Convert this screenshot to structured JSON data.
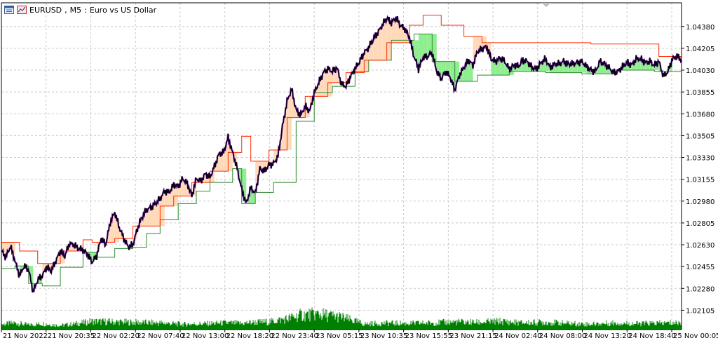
{
  "header": {
    "symbol": "EURUSD",
    "timeframe": "M5",
    "description": "Euro vs US Dollar",
    "icons": [
      "chart-window-icon",
      "chart-type-icon"
    ]
  },
  "colors": {
    "background": "#ffffff",
    "grid": "#c8c8c8",
    "price_line": "#000000",
    "bull_band_fill": "#90ee90",
    "bull_band_edge": "#2e8b2e",
    "bear_band_fill": "#ffdab9",
    "bear_band_edge": "#ff2a00",
    "highlight": "#4b0082",
    "volume": "#008000"
  },
  "chart_data": {
    "type": "line",
    "title": "EURUSD, M5: Euro vs US Dollar",
    "xlabel": "",
    "ylabel": "",
    "ylim": [
      1.0195,
      1.0457
    ],
    "grid": true,
    "y_ticks": [
      "1.04380",
      "1.04205",
      "1.04030",
      "1.03855",
      "1.03680",
      "1.03505",
      "1.03330",
      "1.03155",
      "1.02980",
      "1.02805",
      "1.02630",
      "1.02455",
      "1.02280",
      "1.02105"
    ],
    "x_ticks": [
      "21 Nov 2022",
      "21 Nov 20:35",
      "22 Nov 02:20",
      "22 Nov 07:40",
      "22 Nov 13:00",
      "22 Nov 18:20",
      "22 Nov 23:40",
      "23 Nov 05:15",
      "23 Nov 10:35",
      "23 Nov 15:55",
      "23 Nov 21:15",
      "24 Nov 02:40",
      "24 Nov 08:00",
      "24 Nov 13:20",
      "24 Nov 18:40",
      "25 Nov 00:05"
    ],
    "series": [
      {
        "role": "price",
        "x": [
          0,
          2,
          4,
          6,
          8,
          10,
          12,
          14,
          16,
          18,
          20,
          22,
          24,
          26,
          28,
          30,
          32,
          34,
          36,
          38,
          40,
          42,
          44,
          46,
          48,
          50,
          52,
          54,
          56,
          58,
          60,
          62,
          64,
          66,
          68,
          70,
          72,
          74,
          76,
          78,
          80,
          82,
          84,
          86,
          88,
          90,
          92,
          94,
          96,
          98,
          100,
          102,
          104,
          106,
          108,
          110,
          112,
          114,
          116,
          118,
          120,
          122,
          124,
          126,
          128,
          130,
          132,
          134,
          136,
          138,
          140,
          142,
          144,
          146,
          148,
          150,
          152,
          154,
          156,
          158,
          160,
          162,
          164,
          166,
          168,
          170,
          172,
          174,
          176,
          178,
          180,
          182,
          184,
          186,
          188,
          190,
          192,
          194,
          196,
          198,
          200,
          202,
          204,
          206,
          208,
          210,
          212,
          214,
          216,
          218,
          220,
          222,
          224,
          226,
          228,
          230,
          232,
          234,
          236,
          238,
          240,
          242,
          244,
          246,
          248,
          250,
          252,
          254,
          256,
          258,
          260,
          262,
          264,
          266,
          268,
          270,
          272,
          274,
          276,
          278,
          280,
          282,
          284,
          286,
          288,
          290,
          292,
          294,
          296,
          298,
          300
        ],
        "values": [
          1.0258,
          1.0253,
          1.0262,
          1.025,
          1.0238,
          1.0246,
          1.0243,
          1.0225,
          1.0235,
          1.0238,
          1.0245,
          1.0242,
          1.025,
          1.0258,
          1.0254,
          1.0264,
          1.0263,
          1.026,
          1.0259,
          1.0255,
          1.0249,
          1.0254,
          1.0268,
          1.0263,
          1.0281,
          1.0289,
          1.0277,
          1.0268,
          1.0261,
          1.0263,
          1.0276,
          1.0285,
          1.0291,
          1.0293,
          1.0296,
          1.03,
          1.0306,
          1.0305,
          1.0311,
          1.031,
          1.0316,
          1.0312,
          1.0302,
          1.0316,
          1.0314,
          1.032,
          1.0317,
          1.0326,
          1.0336,
          1.0337,
          1.0349,
          1.0337,
          1.0324,
          1.0307,
          1.0296,
          1.0309,
          1.0304,
          1.0324,
          1.0322,
          1.0327,
          1.0328,
          1.0334,
          1.0358,
          1.0378,
          1.0388,
          1.0371,
          1.0367,
          1.0374,
          1.037,
          1.0385,
          1.0393,
          1.0401,
          1.0404,
          1.0402,
          1.0405,
          1.0392,
          1.039,
          1.0398,
          1.0404,
          1.041,
          1.0417,
          1.0421,
          1.0428,
          1.0433,
          1.0439,
          1.0445,
          1.0441,
          1.0445,
          1.0439,
          1.0436,
          1.0429,
          1.0414,
          1.0404,
          1.0413,
          1.0414,
          1.0417,
          1.0402,
          1.0396,
          1.0402,
          1.0397,
          1.0387,
          1.0399,
          1.0405,
          1.0411,
          1.0407,
          1.0418,
          1.042,
          1.0422,
          1.0412,
          1.041,
          1.0413,
          1.041,
          1.0404,
          1.0407,
          1.0406,
          1.0411,
          1.041,
          1.0405,
          1.0404,
          1.0409,
          1.0412,
          1.0405,
          1.0408,
          1.0408,
          1.041,
          1.0408,
          1.0408,
          1.0409,
          1.041,
          1.0406,
          1.0403,
          1.0402,
          1.041,
          1.0408,
          1.0405,
          1.0401,
          1.0402,
          1.0406,
          1.0409,
          1.0407,
          1.0412,
          1.0412,
          1.0409,
          1.041,
          1.0407,
          1.041,
          1.0398,
          1.0402,
          1.0412,
          1.0414,
          1.0411
        ]
      },
      {
        "role": "band-lower",
        "x": [
          0,
          6,
          12,
          18,
          26,
          36,
          42,
          50,
          58,
          64,
          70,
          78,
          86,
          92,
          102,
          106,
          112,
          120,
          130,
          138,
          146,
          156,
          162,
          172,
          182,
          190,
          200,
          210,
          224,
          240,
          256,
          270,
          288,
          300
        ],
        "values": [
          1.0244,
          1.0246,
          1.0232,
          1.023,
          1.0245,
          1.0257,
          1.0253,
          1.026,
          1.0261,
          1.0272,
          1.0283,
          1.0296,
          1.0306,
          1.0313,
          1.0324,
          1.0296,
          1.0305,
          1.0313,
          1.0362,
          1.0385,
          1.039,
          1.0402,
          1.0411,
          1.0427,
          1.0432,
          1.041,
          1.0394,
          1.0399,
          1.0402,
          1.0401,
          1.04,
          1.0403,
          1.0402,
          1.0407
        ]
      },
      {
        "role": "band-upper",
        "x": [
          0,
          4,
          8,
          16,
          26,
          36,
          40,
          50,
          58,
          64,
          70,
          76,
          84,
          92,
          100,
          106,
          110,
          118,
          126,
          134,
          144,
          152,
          160,
          170,
          180,
          186,
          194,
          204,
          212,
          230,
          260,
          284,
          290,
          300
        ],
        "values": [
          1.0265,
          1.0265,
          1.0258,
          1.0248,
          1.0258,
          1.0267,
          1.0265,
          1.0268,
          1.0278,
          1.0278,
          1.0294,
          1.0302,
          1.0313,
          1.0322,
          1.0337,
          1.035,
          1.033,
          1.0339,
          1.0365,
          1.0382,
          1.0393,
          1.0401,
          1.0411,
          1.0425,
          1.0439,
          1.0447,
          1.0439,
          1.043,
          1.0425,
          1.0425,
          1.0424,
          1.0424,
          1.0414,
          1.0414
        ]
      },
      {
        "role": "volume",
        "x": [
          0,
          6,
          12,
          18,
          26,
          34,
          40,
          50,
          60,
          70,
          80,
          90,
          100,
          106,
          110,
          118,
          126,
          132,
          140,
          150,
          160,
          170,
          180,
          190,
          200,
          210,
          220,
          230,
          240,
          250,
          260,
          270,
          280,
          290,
          300
        ],
        "values": [
          200,
          260,
          180,
          230,
          160,
          240,
          320,
          300,
          280,
          260,
          210,
          230,
          260,
          240,
          280,
          300,
          420,
          560,
          600,
          480,
          220,
          250,
          240,
          260,
          300,
          280,
          320,
          260,
          290,
          240,
          210,
          260,
          230,
          250,
          270
        ]
      }
    ]
  }
}
